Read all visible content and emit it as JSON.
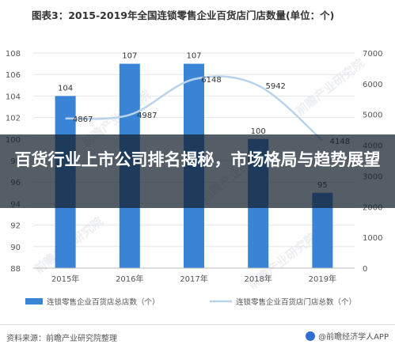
{
  "title": "图表3：2015-2019年全国连锁零售企业百货店门店数量(单位：个)",
  "overlay_text": "百货行业上市公司排名揭秘，市场格局与趋势展望",
  "source": "资料来源：前瞻产业研究院整理",
  "brand": "@前瞻经济学人APP",
  "watermark": "前瞻产业研究院",
  "colors": {
    "bar": "#3a84d6",
    "line": "#b9d3ec",
    "text": "#555555",
    "grid": "#e6e6e6"
  },
  "chart_data": {
    "type": "bar",
    "categories": [
      "2015年",
      "2016年",
      "2017年",
      "2018年",
      "2019年"
    ],
    "series": [
      {
        "name": "连锁零售企业百货店总店数（个）",
        "type": "bar",
        "axis": "left",
        "values": [
          104,
          107,
          107,
          100,
          95
        ]
      },
      {
        "name": "连锁零售企业百货店门店总数（个）",
        "type": "line",
        "axis": "right",
        "values": [
          4867,
          4987,
          6148,
          5942,
          4148
        ]
      }
    ],
    "ylim": [
      88,
      108
    ],
    "yticks": [
      88,
      90,
      92,
      94,
      96,
      98,
      100,
      102,
      104,
      106,
      108
    ],
    "y2lim": [
      0,
      7000
    ],
    "y2ticks": [
      0,
      1000,
      2000,
      3000,
      4000,
      5000,
      6000,
      7000
    ],
    "legend": "bottom",
    "grid": true
  }
}
